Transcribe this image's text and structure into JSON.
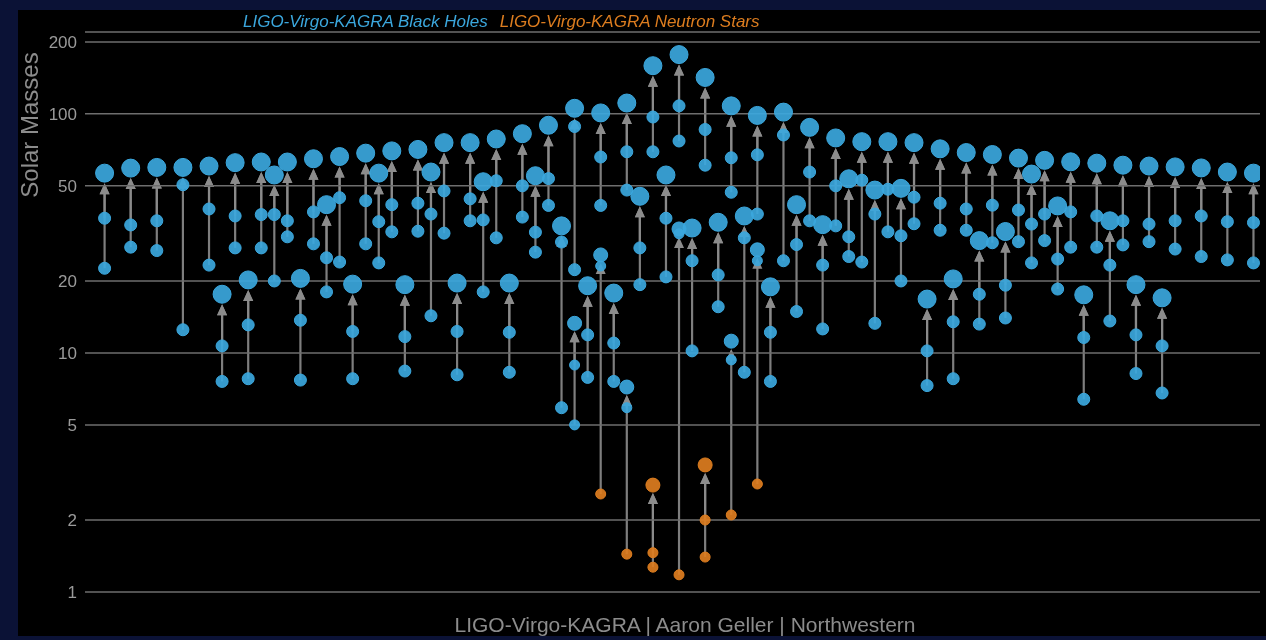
{
  "chart_data": {
    "type": "scatter",
    "ylabel": "Solar Masses",
    "annotations": [
      "LIGO-Virgo-KAGRA | Aaron Geller | Northwestern"
    ],
    "categories": [
      null,
      null,
      null,
      null,
      null,
      null,
      null,
      null,
      null,
      null,
      null,
      null,
      null,
      null,
      null,
      null,
      null,
      null,
      null,
      null,
      null,
      null,
      null,
      null,
      null,
      null,
      null,
      null,
      null,
      null,
      null,
      null,
      null,
      null,
      null,
      null,
      null,
      null,
      null,
      null,
      null,
      null,
      null,
      null,
      null,
      null,
      null,
      null,
      null,
      null,
      null,
      null,
      null,
      null,
      null,
      null,
      null,
      null,
      null,
      null,
      null,
      null,
      null,
      null,
      null,
      null,
      null,
      null,
      null,
      null,
      null,
      null,
      null,
      null,
      null,
      null,
      null,
      null,
      null,
      null,
      null,
      null,
      null,
      null,
      null,
      null,
      null,
      null,
      null,
      null
    ],
    "log": true,
    "ylim": [
      1,
      220
    ],
    "yticks": [
      1,
      2,
      5,
      10,
      20,
      50,
      100,
      200
    ],
    "grid": "y",
    "legend": "top",
    "tick_labels": "y",
    "marker": "circle",
    "series": [
      {
        "name": "LIGO-Virgo-KAGRA Black Holes",
        "color": "#3ba7dd",
        "values": [
          null,
          56.5,
          null,
          59.3,
          null,
          59.7,
          null,
          59.7,
          null,
          60.5,
          17.6,
          62.5,
          20.2,
          62.9,
          55.5,
          62.9,
          20.5,
          64.9,
          41.7,
          66.3,
          19.4,
          68.5,
          56.5,
          70,
          19.3,
          71,
          57.1,
          75.8,
          19.6,
          75.8,
          52,
          78.5,
          19.6,
          82.6,
          55.1,
          89.6,
          34,
          105.5,
          19.1,
          100.9,
          17.8,
          111,
          45.2,
          159,
          55.5,
          177,
          33.3,
          142,
          35.2,
          108,
          37.4,
          98.5,
          18.9,
          101.7,
          41.7,
          87.8,
          34.4,
          79.3,
          53.5,
          76.5,
          48,
          76.5,
          48.8,
          75.8,
          16.8,
          71.4,
          20.4,
          68.9,
          29.5,
          67.6,
          32.2,
          65.3,
          56,
          63.9,
          41.2,
          63,
          17.5,
          62.2,
          35.7,
          61,
          19.3,
          60.5,
          17,
          60,
          null,
          59.4,
          null,
          57.1,
          null,
          56.5
        ]
      },
      {
        "color": "#3ba7dd",
        "values": [
          null,
          36.6,
          null,
          34.3,
          null,
          35.7,
          null,
          50.5,
          null,
          40,
          10.7,
          37.4,
          13.1,
          37.9,
          37.9,
          35.7,
          13.7,
          38.9,
          25,
          44.6,
          12.3,
          43.3,
          35.4,
          41.7,
          11.7,
          42.3,
          38.1,
          47.6,
          12.3,
          44.1,
          36,
          52.5,
          12.2,
          50,
          32,
          53.6,
          29.1,
          88.5,
          11.9,
          66,
          11,
          69.4,
          27.5,
          97,
          36.6,
          108,
          24.3,
          86,
          21.2,
          65.5,
          30.3,
          67.4,
          12.2,
          81.6,
          28.4,
          57.1,
          23.3,
          50,
          30.6,
          52.8,
          38.1,
          48.4,
          30.9,
          44.8,
          10.2,
          42.3,
          13.5,
          40,
          17.6,
          41.5,
          19.2,
          39.6,
          34.6,
          38.1,
          24.7,
          38.9,
          11.6,
          37.4,
          23.3,
          35.7,
          11.9,
          34.6,
          10.7,
          35.7,
          null,
          37.4,
          null,
          35.4,
          null,
          35.1
        ]
      },
      {
        "color": "#3ba7dd",
        "values": [
          null,
          22.6,
          null,
          27.7,
          null,
          26.8,
          null,
          12.5,
          null,
          23.3,
          7.6,
          27.5,
          7.8,
          27.5,
          20,
          30.6,
          7.7,
          28.6,
          18,
          24,
          7.8,
          28.6,
          23.8,
          32.1,
          8.4,
          32.3,
          14.3,
          31.7,
          8.1,
          35.7,
          18,
          30.3,
          8.3,
          37,
          26.4,
          41.4,
          5.9,
          22.3,
          7.9,
          41.4,
          7.6,
          48,
          19.3,
          69.4,
          20.8,
          77,
          10.2,
          61,
          15.6,
          47,
          8.3,
          38.1,
          7.6,
          24.3,
          14.9,
          35.7,
          12.6,
          34,
          25.3,
          24,
          13.3,
          32.1,
          20,
          34.7,
          7.3,
          32.6,
          7.8,
          32.6,
          13.2,
          28.9,
          14,
          29.2,
          23.8,
          29.5,
          18.5,
          27.7,
          6.4,
          27.7,
          13.6,
          28.3,
          8.2,
          29.2,
          6.8,
          27.2,
          null,
          25.3,
          null,
          24.5,
          null,
          23.8
        ]
      },
      {
        "color": "#3ba7dd",
        "values": [
          null,
          null,
          null,
          null,
          null,
          null,
          null,
          null,
          null,
          null,
          null,
          null,
          null,
          null,
          null,
          null,
          null,
          null,
          null,
          null,
          null,
          null,
          null,
          null,
          null,
          null,
          null,
          null,
          null,
          null,
          null,
          null,
          null,
          null,
          null,
          null,
          null,
          13.3,
          null,
          null,
          null,
          null,
          null,
          null,
          null,
          null,
          null,
          null,
          null,
          null,
          null,
          null,
          null,
          null,
          null,
          null,
          null,
          null,
          null,
          null,
          null,
          null,
          null,
          null,
          null,
          null,
          null,
          null,
          null,
          null,
          null,
          null,
          null,
          null,
          null,
          null,
          null,
          null,
          null,
          null,
          null,
          null,
          null,
          null,
          null,
          null,
          null,
          null,
          null,
          null
        ]
      },
      {
        "color": "#3ba7dd",
        "values": [
          null,
          null,
          null,
          null,
          null,
          null,
          null,
          null,
          null,
          null,
          null,
          null,
          null,
          null,
          null,
          null,
          null,
          null,
          null,
          null,
          null,
          null,
          null,
          null,
          null,
          null,
          null,
          null,
          null,
          null,
          null,
          null,
          null,
          null,
          null,
          null,
          null,
          8.9,
          null,
          null,
          null,
          null,
          null,
          null,
          null,
          null,
          null,
          null,
          null,
          null,
          null,
          null,
          null,
          null,
          null,
          null,
          null,
          null,
          null,
          null,
          null,
          null,
          null,
          null,
          null,
          null,
          null,
          null,
          null,
          null,
          null,
          null,
          null,
          null,
          null,
          null,
          null,
          null,
          null,
          null,
          null,
          null,
          null,
          null,
          null,
          null,
          null,
          null,
          null,
          null
        ]
      },
      {
        "color": "#3ba7dd",
        "values": [
          null,
          null,
          null,
          null,
          null,
          null,
          null,
          null,
          null,
          null,
          null,
          null,
          null,
          null,
          null,
          null,
          null,
          null,
          null,
          null,
          null,
          null,
          null,
          null,
          null,
          null,
          null,
          null,
          null,
          null,
          null,
          null,
          null,
          null,
          null,
          null,
          null,
          5.0,
          null,
          null,
          null,
          null,
          null,
          null,
          null,
          null,
          null,
          null,
          null,
          null,
          null,
          null,
          null,
          null,
          null,
          null,
          null,
          null,
          null,
          null,
          null,
          null,
          null,
          null,
          null,
          null,
          null,
          null,
          null,
          null,
          null,
          null,
          null,
          null,
          null,
          null,
          null,
          null,
          null,
          null,
          null,
          null,
          null,
          null,
          null,
          null,
          null,
          null,
          null,
          null
        ]
      },
      {
        "color": "#3ba7dd",
        "values": [
          null,
          null,
          null,
          null,
          null,
          null,
          null,
          null,
          null,
          null,
          null,
          null,
          null,
          null,
          null,
          null,
          null,
          null,
          null,
          null,
          null,
          null,
          null,
          null,
          null,
          null,
          null,
          null,
          null,
          null,
          null,
          null,
          null,
          null,
          null,
          null,
          null,
          null,
          null,
          25.7,
          null,
          7.2,
          null,
          null,
          null,
          33,
          null,
          null,
          null,
          11.2,
          null,
          27,
          null,
          null,
          null,
          null,
          null,
          null,
          null,
          null,
          null,
          null,
          null,
          null,
          null,
          null,
          null,
          null,
          null,
          null,
          null,
          null,
          null,
          null,
          null,
          null,
          null,
          null,
          null,
          null,
          null,
          null,
          null,
          null,
          null,
          null,
          null,
          null,
          null,
          null
        ]
      },
      {
        "color": "#3ba7dd",
        "values": [
          null,
          null,
          null,
          null,
          null,
          null,
          null,
          null,
          null,
          null,
          null,
          null,
          null,
          null,
          null,
          null,
          null,
          null,
          null,
          null,
          null,
          null,
          null,
          null,
          null,
          null,
          null,
          null,
          null,
          null,
          null,
          null,
          null,
          null,
          null,
          null,
          null,
          null,
          null,
          23.1,
          null,
          5.9,
          null,
          null,
          null,
          31.5,
          null,
          null,
          null,
          9.35,
          null,
          24.3,
          null,
          null,
          null,
          null,
          null,
          null,
          null,
          null,
          null,
          null,
          null,
          null,
          null,
          null,
          null,
          null,
          null,
          null,
          null,
          null,
          null,
          null,
          null,
          null,
          null,
          null,
          null,
          null,
          null,
          null,
          null,
          null,
          null,
          null,
          null,
          null,
          null,
          null
        ]
      },
      {
        "name": "LIGO-Virgo-KAGRA Neutron Stars",
        "color": "#dd7d1f",
        "values": [
          null,
          null,
          null,
          null,
          null,
          null,
          null,
          null,
          null,
          null,
          null,
          null,
          null,
          null,
          null,
          null,
          null,
          null,
          null,
          null,
          null,
          null,
          null,
          null,
          null,
          null,
          null,
          null,
          null,
          null,
          null,
          null,
          null,
          null,
          null,
          null,
          null,
          null,
          null,
          2.57,
          null,
          1.44,
          null,
          null,
          null,
          1.18,
          null,
          null,
          null,
          2.1,
          null,
          2.83,
          null,
          null,
          null,
          null,
          null,
          null,
          null,
          null,
          null,
          null,
          null,
          null,
          null,
          null,
          null,
          null,
          null,
          null,
          null,
          null,
          null,
          null,
          null,
          null,
          null,
          null,
          null,
          null,
          null,
          null,
          null,
          null,
          null,
          null,
          null,
          null,
          null,
          null
        ]
      },
      {
        "color": "#dd7d1f",
        "values": [
          null,
          null,
          null,
          null,
          null,
          null,
          null,
          null,
          null,
          null,
          null,
          null,
          null,
          null,
          null,
          null,
          null,
          null,
          null,
          null,
          null,
          null,
          null,
          null,
          null,
          null,
          null,
          null,
          null,
          null,
          null,
          null,
          null,
          null,
          null,
          null,
          null,
          null,
          null,
          null,
          null,
          null,
          null,
          2.8,
          null,
          null,
          null,
          3.4,
          null,
          null,
          null,
          null,
          null,
          null,
          null,
          null,
          null,
          null,
          null,
          null,
          null,
          null,
          null,
          null,
          null,
          null,
          null,
          null,
          null,
          null,
          null,
          null,
          null,
          null,
          null,
          null,
          null,
          null,
          null,
          null,
          null,
          null,
          null,
          null,
          null,
          null,
          null,
          null,
          null,
          null
        ]
      },
      {
        "color": "#dd7d1f",
        "values": [
          null,
          null,
          null,
          null,
          null,
          null,
          null,
          null,
          null,
          null,
          null,
          null,
          null,
          null,
          null,
          null,
          null,
          null,
          null,
          null,
          null,
          null,
          null,
          null,
          null,
          null,
          null,
          null,
          null,
          null,
          null,
          null,
          null,
          null,
          null,
          null,
          null,
          null,
          null,
          null,
          null,
          null,
          null,
          1.46,
          null,
          null,
          null,
          2.0,
          null,
          null,
          null,
          null,
          null,
          null,
          null,
          null,
          null,
          null,
          null,
          null,
          null,
          null,
          null,
          null,
          null,
          null,
          null,
          null,
          null,
          null,
          null,
          null,
          null,
          null,
          null,
          null,
          null,
          null,
          null,
          null,
          null,
          null,
          null,
          null,
          null,
          null,
          null,
          null,
          null,
          null
        ]
      },
      {
        "color": "#dd7d1f",
        "values": [
          null,
          null,
          null,
          null,
          null,
          null,
          null,
          null,
          null,
          null,
          null,
          null,
          null,
          null,
          null,
          null,
          null,
          null,
          null,
          null,
          null,
          null,
          null,
          null,
          null,
          null,
          null,
          null,
          null,
          null,
          null,
          null,
          null,
          null,
          null,
          null,
          null,
          null,
          null,
          null,
          null,
          null,
          null,
          1.27,
          null,
          null,
          null,
          1.4,
          null,
          null,
          null,
          null,
          null,
          null,
          null,
          null,
          null,
          null,
          null,
          null,
          null,
          null,
          null,
          null,
          null,
          null,
          null,
          null,
          null,
          null,
          null,
          null,
          null,
          null,
          null,
          null,
          null,
          null,
          null,
          null,
          null,
          null,
          null,
          null,
          null,
          null,
          null,
          null,
          null,
          null
        ]
      }
    ]
  }
}
